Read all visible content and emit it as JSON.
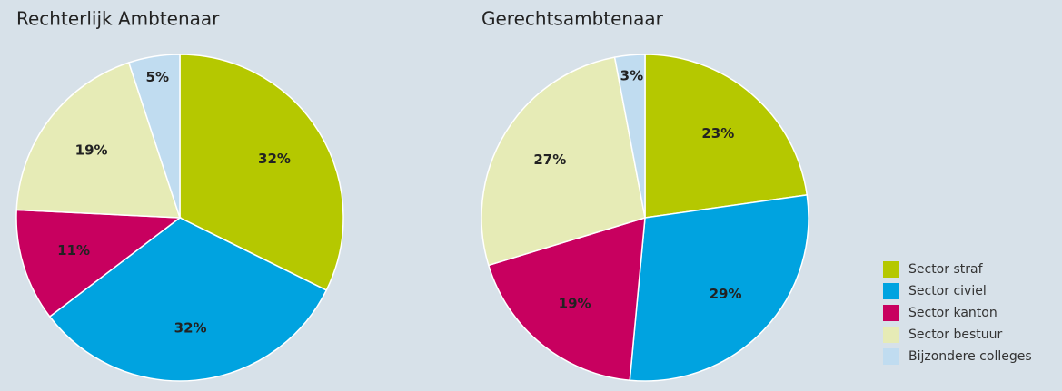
{
  "chart_data": [
    {
      "type": "pie",
      "title": "Rechterlijk Ambtenaar",
      "values": [
        32,
        32,
        11,
        19,
        5
      ],
      "value_labels": [
        "32%",
        "32%",
        "11%",
        "19%",
        "5%"
      ]
    },
    {
      "type": "pie",
      "title": "Gerechtsambtenaar",
      "values": [
        23,
        29,
        19,
        27,
        3
      ],
      "value_labels": [
        "23%",
        "29%",
        "19%",
        "27%",
        "3%"
      ]
    }
  ],
  "legend": {
    "categories": [
      "Sector straf",
      "Sector civiel",
      "Sector kanton",
      "Sector bestuur",
      "Bijzondere colleges"
    ],
    "colors": [
      "#b5c800",
      "#00a3e0",
      "#c8005f",
      "#e6ebb6",
      "#c0dcf0"
    ]
  }
}
